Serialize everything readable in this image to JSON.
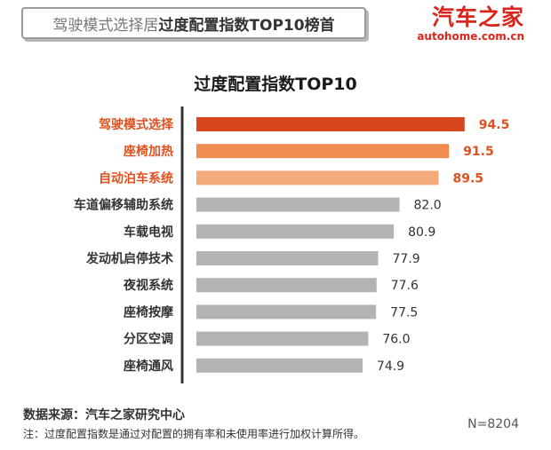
{
  "header": {
    "light_text": "驾驶模式选择居",
    "bold_text": "过度配置指数TOP10榜首"
  },
  "logo": {
    "main": "汽车之家",
    "sub": "autohome.com.cn"
  },
  "footer": {
    "source": "数据来源：汽车之家研究中心",
    "note": "注：过度配置指数是通过对配置的拥有率和未使用率进行加权计算所得。",
    "sample_size": "N=8204"
  },
  "colors": {
    "rank1": "#d8441c",
    "rank2": "#ef8c4f",
    "rank3": "#f3a97a",
    "others": "#b3b3b3",
    "label_highlight": "#e0501e",
    "label_default": "#333333",
    "axis": "#333333"
  },
  "chart_data": {
    "type": "bar",
    "orientation": "horizontal",
    "title": "过度配置指数TOP10",
    "categories": [
      "驾驶模式选择",
      "座椅加热",
      "自动泊车系统",
      "车道偏移辅助系统",
      "车载电视",
      "发动机启停技术",
      "夜视系统",
      "座椅按摩",
      "分区空调",
      "座椅通风"
    ],
    "values": [
      94.5,
      91.5,
      89.5,
      82.0,
      80.9,
      77.9,
      77.6,
      77.5,
      76.0,
      74.9
    ],
    "value_labels": [
      "94.5",
      "91.5",
      "89.5",
      "82.0",
      "80.9",
      "77.9",
      "77.6",
      "77.5",
      "76.0",
      "74.9"
    ],
    "highlighted_count": 3,
    "xlim": [
      43,
      100
    ],
    "grid": false,
    "legend": "none"
  }
}
